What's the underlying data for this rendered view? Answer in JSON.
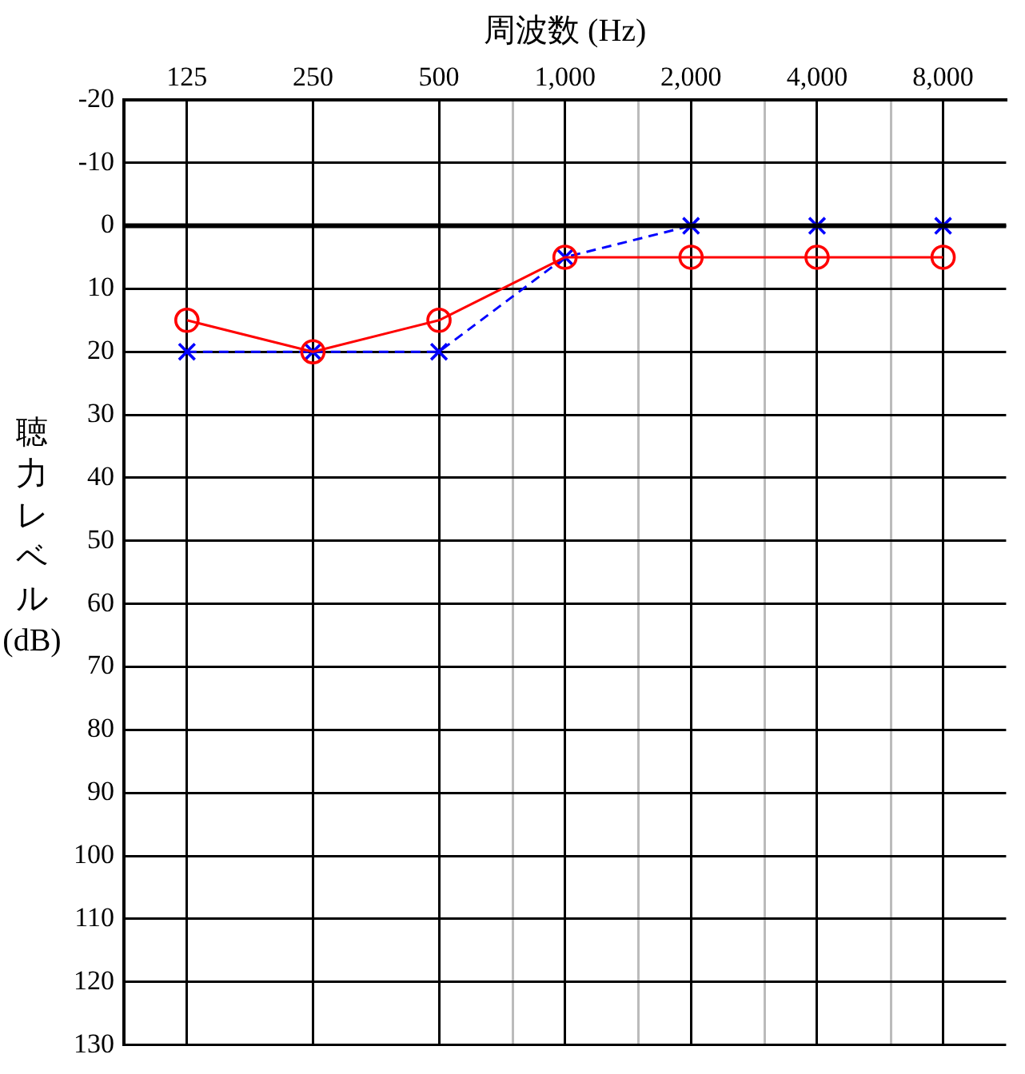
{
  "chart_data": {
    "type": "line",
    "xlabel": "周波数 (Hz)",
    "ylabel": "聴力レベル (dB)",
    "x": [
      125,
      250,
      500,
      1000,
      2000,
      4000,
      8000
    ],
    "log": "x",
    "xlim": [
      88.4,
      11314
    ],
    "xticks": [
      125,
      250,
      500,
      {
        "value": 750,
        "label": null
      },
      {
        "value": 1000,
        "label": "1,000"
      },
      {
        "value": 1500,
        "label": null
      },
      {
        "value": 2000,
        "label": "2,000"
      },
      {
        "value": 3000,
        "label": null
      },
      {
        "value": 4000,
        "label": "4,000"
      },
      {
        "value": 6000,
        "label": null
      },
      {
        "value": 8000,
        "label": "8,000"
      }
    ],
    "ylim": [
      130,
      -20
    ],
    "yticks": [
      -20,
      -10,
      0,
      10,
      20,
      30,
      40,
      50,
      60,
      70,
      80,
      90,
      100,
      110,
      120,
      130
    ],
    "grid": true,
    "legend": false,
    "ref_lines": [
      {
        "axis": "y",
        "value": 0,
        "color": "#000000"
      }
    ],
    "series": [
      {
        "color": "#ff0000",
        "marker": "circle",
        "line_style": "solid",
        "values": [
          15,
          20,
          15,
          5,
          5,
          5,
          5
        ]
      },
      {
        "color": "#0000ff",
        "marker": "cross",
        "line_style": "dashed",
        "values": [
          20,
          20,
          20,
          5,
          0,
          0,
          0
        ]
      }
    ]
  }
}
